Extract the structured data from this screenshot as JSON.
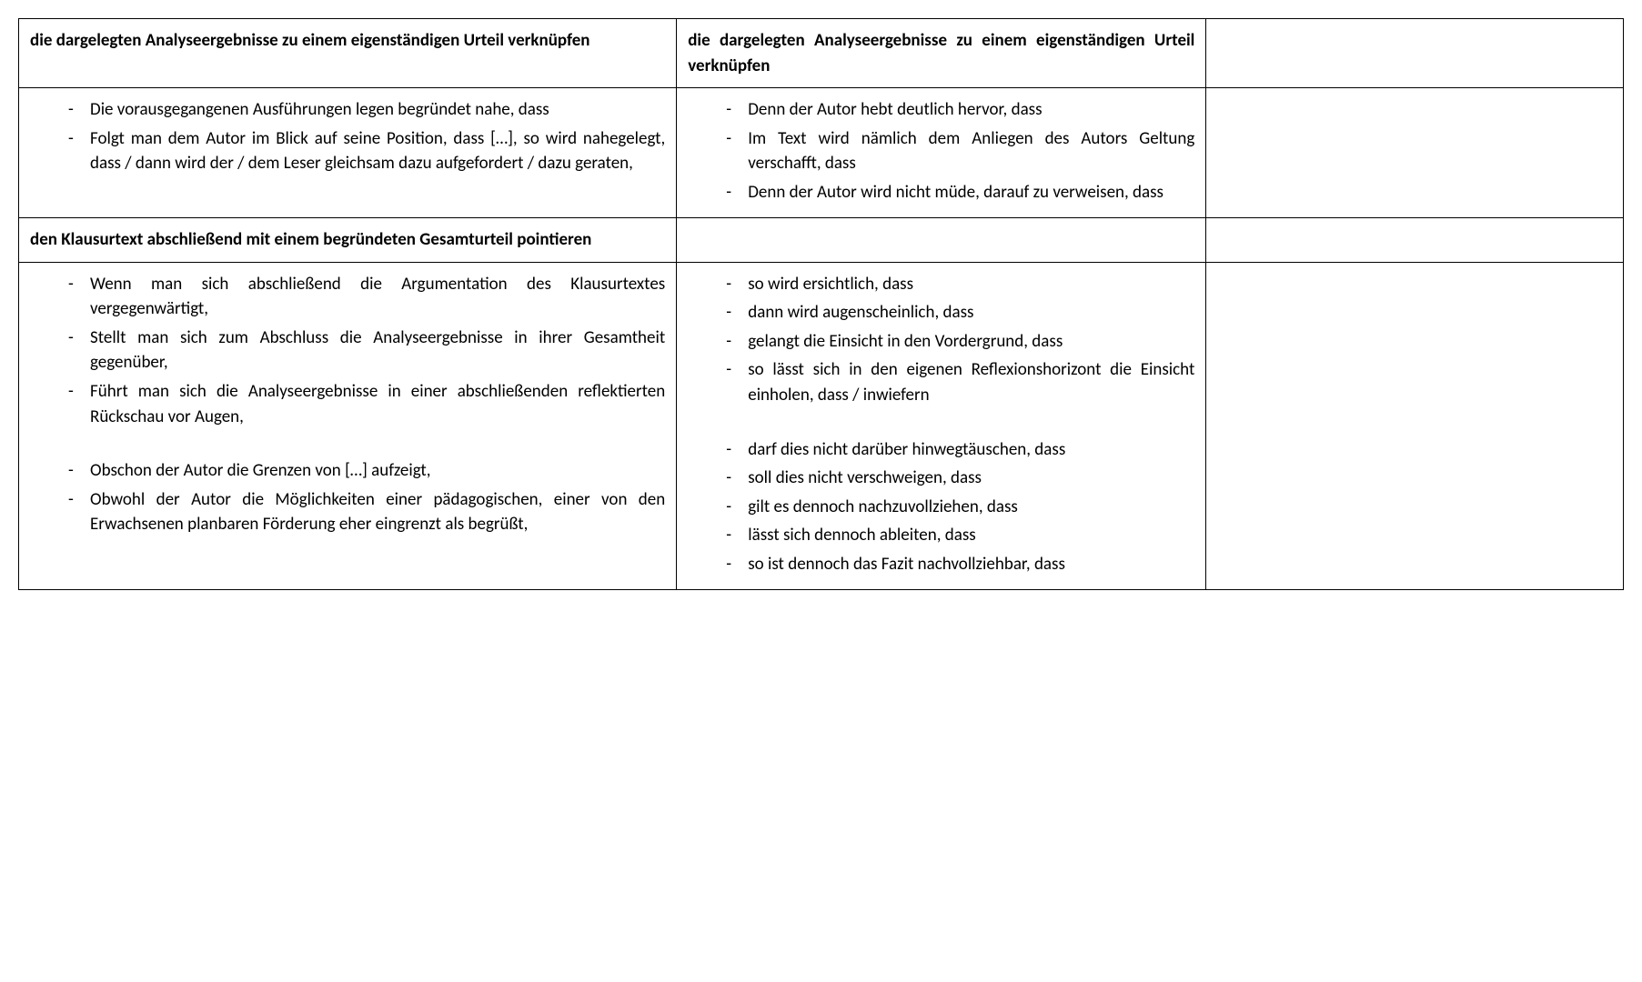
{
  "colors": {
    "text": "#000000",
    "background": "#ffffff",
    "border": "#000000"
  },
  "typography": {
    "font_family": "Calibri",
    "font_size_pt": 14,
    "header_weight": 700,
    "body_weight": 400
  },
  "table": {
    "columns": [
      {
        "key": "left",
        "width_pct": 41
      },
      {
        "key": "mid",
        "width_pct": 33
      },
      {
        "key": "right",
        "width_pct": 26
      }
    ]
  },
  "rows": {
    "r1": {
      "header_left": "die dargelegten Analyseergebnisse zu einem eigenständigen Urteil verknüpfen",
      "header_mid": "die dargelegten Analyseergebnisse zu einem eigenständigen Urteil verknüpfen",
      "header_right": ""
    },
    "r2": {
      "left_items": [
        "Die vorausgegangenen Ausführungen legen begründet nahe, dass",
        "Folgt man dem Autor im Blick auf seine Position, dass […], so wird nahegelegt, dass / dann wird der / dem Leser gleichsam dazu aufgefordert / dazu geraten,"
      ],
      "mid_items": [
        "Denn der Autor hebt deutlich hervor, dass",
        "Im Text wird nämlich dem Anliegen des Autors Geltung verschafft, dass",
        "Denn der Autor wird nicht müde, darauf zu verweisen, dass"
      ]
    },
    "r3": {
      "header_left": "den Klausurtext abschließend mit einem begründeten Gesamturteil pointieren",
      "header_mid": "",
      "header_right": ""
    },
    "r4": {
      "left_block_a": [
        "Wenn man sich abschließend die Argumentation des Klausurtextes vergegenwärtigt,",
        "Stellt man sich zum Abschluss die Analyseergebnisse in ihrer Gesamtheit gegenüber,",
        "Führt man sich die Analyseergebnisse in einer abschließenden reflektierten Rückschau vor Augen,"
      ],
      "mid_block_a": [
        "so wird ersichtlich, dass",
        "dann wird augenscheinlich, dass",
        "gelangt die Einsicht in den Vordergrund, dass",
        "so lässt sich in den eigenen Reflexionshorizont die Einsicht einholen, dass / inwiefern"
      ],
      "left_block_b": [
        "Obschon der Autor die Grenzen von […] aufzeigt,",
        "Obwohl der Autor die Möglichkeiten einer pädagogischen, einer von den Erwachsenen planbaren Förderung eher eingrenzt als begrüßt,"
      ],
      "mid_block_b": [
        "darf dies nicht darüber hinwegtäuschen, dass",
        "soll dies nicht verschweigen, dass",
        "gilt es dennoch nachzuvollziehen, dass",
        "lässt sich dennoch ableiten, dass",
        "so ist dennoch das Fazit nachvollziehbar, dass"
      ]
    }
  }
}
